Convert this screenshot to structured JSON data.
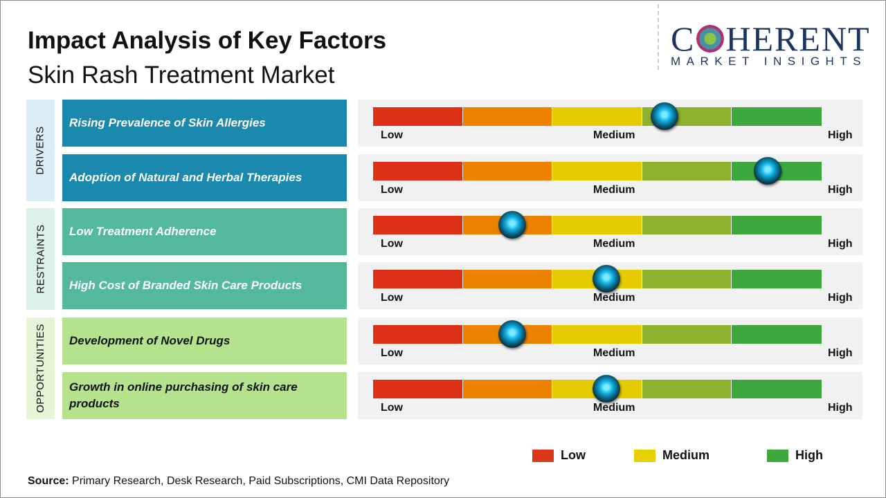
{
  "title": "Impact Analysis of Key Factors",
  "subtitle": "Skin Rash Treatment Market",
  "logo": {
    "main": "COHERENT",
    "sub": "MARKET INSIGHTS"
  },
  "scale_labels": {
    "low": "Low",
    "medium": "Medium",
    "high": "High"
  },
  "segment_colors": [
    "#de2f18",
    "#ec8200",
    "#e6cb00",
    "#8db12c",
    "#3ea83e"
  ],
  "categories": [
    {
      "label": "DRIVERS",
      "bg": "#dbeef6",
      "box": "#1b88ad",
      "text": "#ffffff"
    },
    {
      "label": "RESTRAINTS",
      "bg": "#dcf1ea",
      "box": "#54b89b",
      "text": "#ffffff"
    },
    {
      "label": "OPPORTUNITIES",
      "bg": "#e6f4d8",
      "box": "#b4e28d",
      "text": "#111111"
    }
  ],
  "chart_data": {
    "type": "gauge",
    "scale": [
      "Low",
      "Medium",
      "High"
    ],
    "range": [
      0,
      1
    ],
    "factors": [
      {
        "category": "DRIVERS",
        "label": "Rising Prevalence of Skin Allergies",
        "level": 0.65
      },
      {
        "category": "DRIVERS",
        "label": "Adoption of Natural and Herbal Therapies",
        "level": 0.88
      },
      {
        "category": "RESTRAINTS",
        "label": "Low Treatment Adherence",
        "level": 0.31
      },
      {
        "category": "RESTRAINTS",
        "label": "High Cost of Branded Skin Care Products",
        "level": 0.52
      },
      {
        "category": "OPPORTUNITIES",
        "label": "Development of Novel Drugs",
        "level": 0.31
      },
      {
        "category": "OPPORTUNITIES",
        "label": "Growth in online purchasing of skin care products",
        "level": 0.52
      }
    ]
  },
  "legend": [
    {
      "label": "Low",
      "color": "#dc3618"
    },
    {
      "label": "Medium",
      "color": "#e8cf00"
    },
    {
      "label": "High",
      "color": "#3ea83e"
    }
  ],
  "source": {
    "label": "Source:",
    "text": " Primary Research, Desk Research, Paid Subscriptions, CMI Data Repository"
  }
}
